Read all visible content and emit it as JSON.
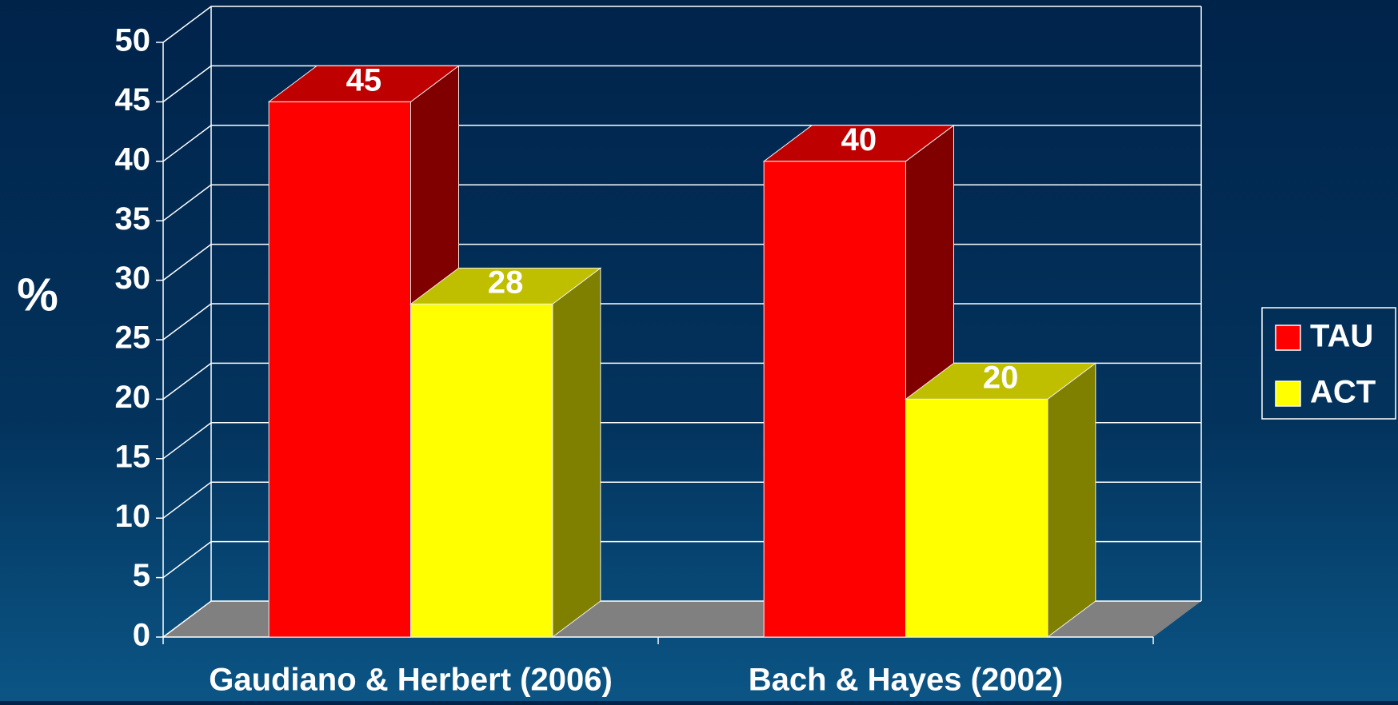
{
  "chart_data": {
    "type": "bar3d",
    "ylabel": "%",
    "categories": [
      "Gaudiano & Herbert (2006)",
      "Bach & Hayes (2002)"
    ],
    "series": [
      {
        "name": "TAU",
        "color": "#ff0000",
        "values": [
          45,
          40
        ]
      },
      {
        "name": "ACT",
        "color": "#ffff00",
        "values": [
          28,
          20
        ]
      }
    ],
    "ylim": [
      0,
      50
    ],
    "yticks": [
      0,
      5,
      10,
      15,
      20,
      25,
      30,
      35,
      40,
      45,
      50
    ],
    "grid": true,
    "legend": "right"
  }
}
